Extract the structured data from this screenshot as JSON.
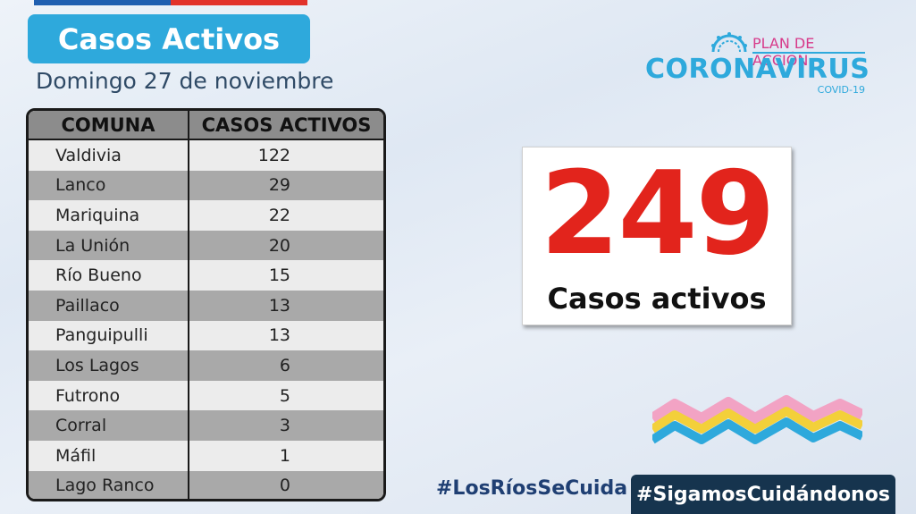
{
  "header": {
    "title": "Casos Activos",
    "date": "Domingo 27 de noviembre"
  },
  "table": {
    "columns": [
      "COMUNA",
      "CASOS ACTIVOS"
    ],
    "rows": [
      {
        "comuna": "Valdivia",
        "casos": "122"
      },
      {
        "comuna": "Lanco",
        "casos": "29"
      },
      {
        "comuna": "Mariquina",
        "casos": "22"
      },
      {
        "comuna": "La Unión",
        "casos": "20"
      },
      {
        "comuna": "Río Bueno",
        "casos": "15"
      },
      {
        "comuna": "Paillaco",
        "casos": "13"
      },
      {
        "comuna": "Panguipulli",
        "casos": "13"
      },
      {
        "comuna": "Los Lagos",
        "casos": "6"
      },
      {
        "comuna": "Futrono",
        "casos": "5"
      },
      {
        "comuna": "Corral",
        "casos": "3"
      },
      {
        "comuna": "Máfil",
        "casos": "1"
      },
      {
        "comuna": "Lago Ranco",
        "casos": "0"
      }
    ]
  },
  "logo": {
    "plan": "PLAN DE ACCIÓN",
    "name": "CORONAVIRUS",
    "sub": "COVID-19"
  },
  "total": {
    "number": "249",
    "label": "Casos activos"
  },
  "footer": {
    "hashtag1": "#LosRíosSeCuida",
    "hashtag2": "#SigamosCuidándonos"
  },
  "colors": {
    "title_bg": "#2ea9dc",
    "total_number": "#e2241c",
    "footer_box": "#16344e",
    "hashtag1": "#1f3f73"
  },
  "icons": [
    "virus-icon",
    "decorative-wave"
  ]
}
